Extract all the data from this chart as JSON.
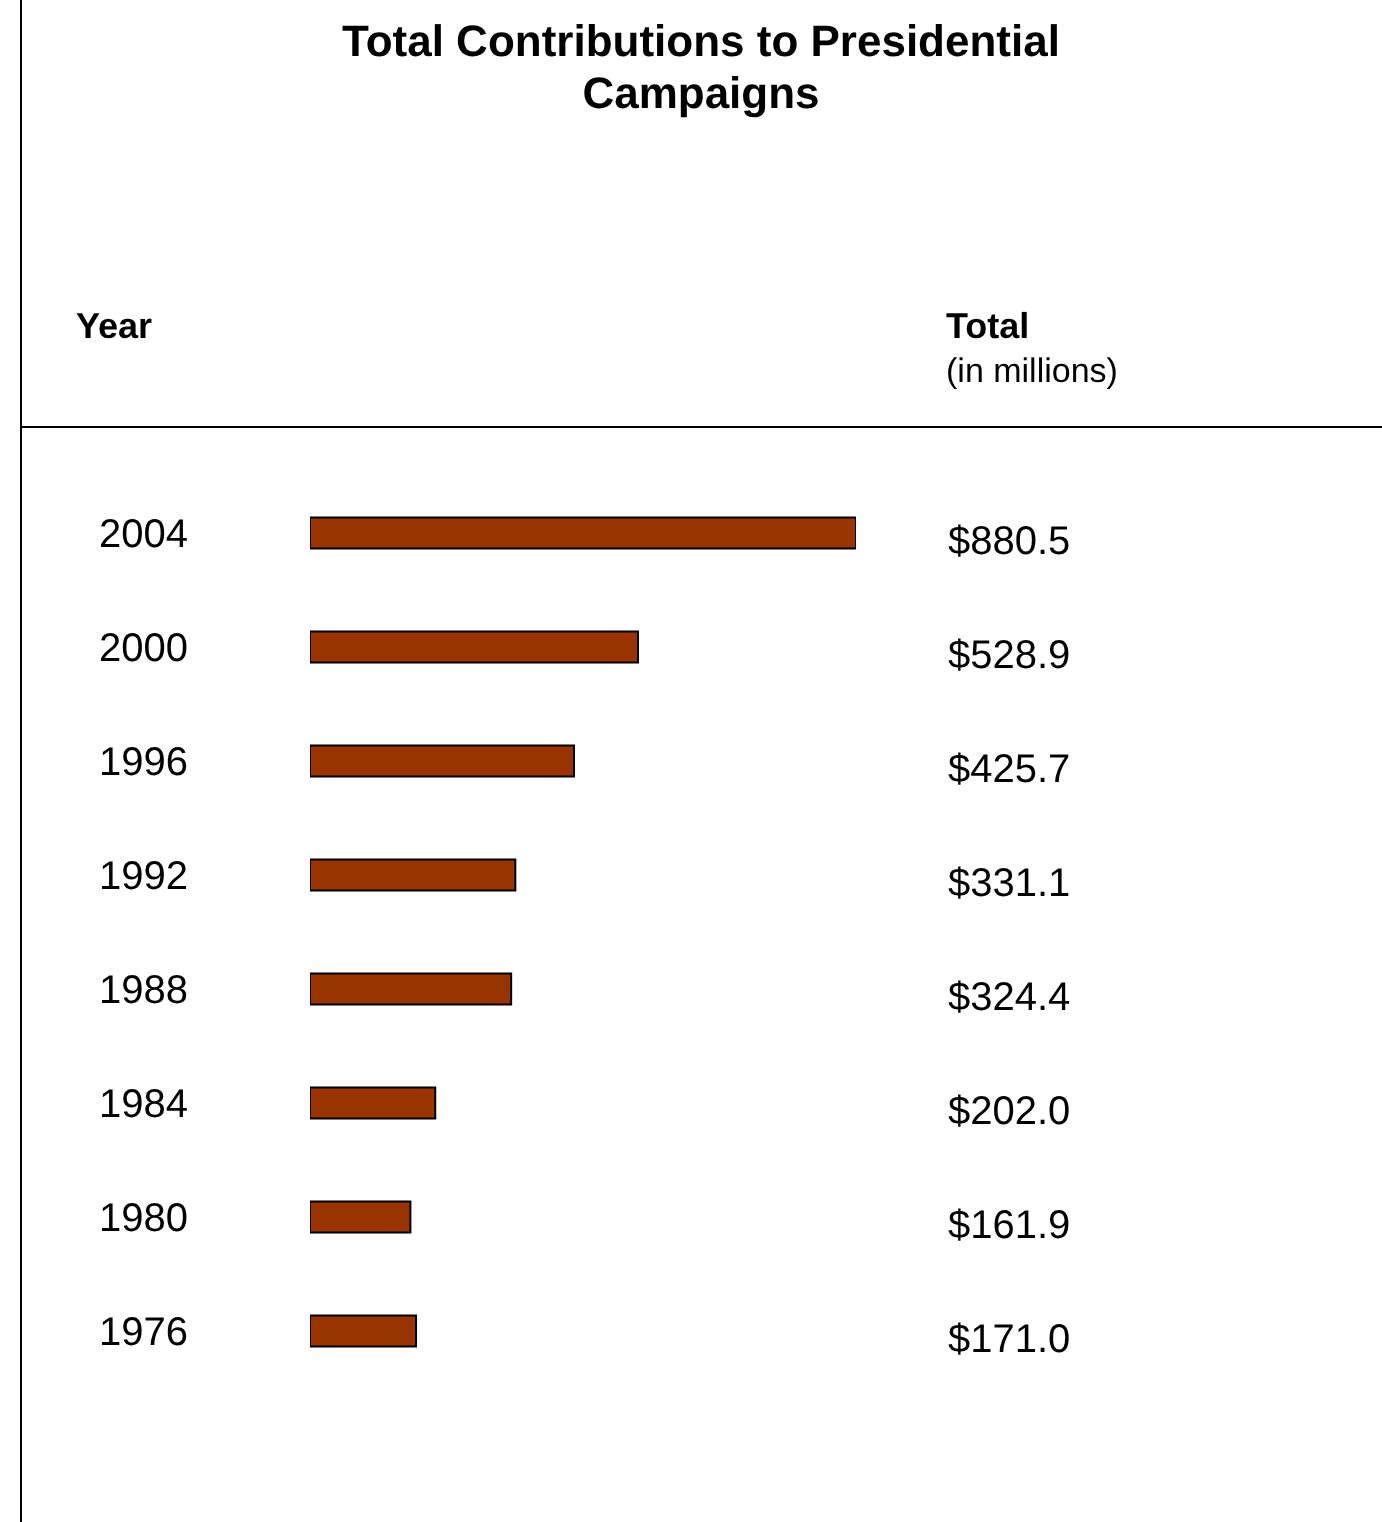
{
  "chart_data": {
    "type": "bar",
    "orientation": "horizontal",
    "title": "Total Contributions to Presidential Campaigns",
    "ylabel": "Year",
    "annotations": [
      "Total",
      "(in millions)"
    ],
    "categories": [
      "2004",
      "2000",
      "1996",
      "1992",
      "1988",
      "1984",
      "1980",
      "1976"
    ],
    "values": [
      880.5,
      528.9,
      425.7,
      331.1,
      324.4,
      202.0,
      161.9,
      171.0
    ],
    "value_labels": [
      "$880.5",
      "$528.9",
      "$425.7",
      "$331.1",
      "$324.4",
      "$202.0",
      "$161.9",
      "$171.0"
    ],
    "color": "#993300",
    "grid": false
  }
}
